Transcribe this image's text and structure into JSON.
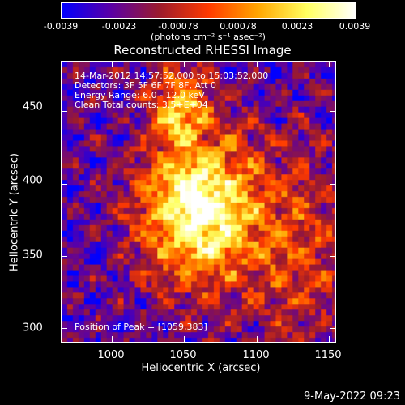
{
  "colorbar": {
    "tick_labels": [
      "-0.0039",
      "-0.0023",
      "-0.00078",
      "0.00078",
      "0.0023",
      "0.0039"
    ],
    "tick_values": [
      -0.0039,
      -0.0023,
      -0.00078,
      0.00078,
      0.0023,
      0.0039
    ],
    "units": "(photons cm⁻² s⁻¹ asec⁻²)"
  },
  "chart_data": {
    "type": "heatmap",
    "title": "Reconstructed RHESSI Image",
    "xlabel": "Heliocentric X (arcsec)",
    "ylabel": "Heliocentric Y (arcsec)",
    "xlim": [
      965,
      1155
    ],
    "ylim": [
      290,
      485
    ],
    "xticks": [
      1000,
      1050,
      1100,
      1150
    ],
    "yticks": [
      300,
      350,
      400,
      450
    ],
    "zlim": [
      -0.0039,
      0.0039
    ],
    "peak": [
      1059,
      383
    ],
    "colormap": [
      "#0000ff",
      "#5a00a6",
      "#9c1b2c",
      "#ff3a00",
      "#ffa500",
      "#ffff60",
      "#ffffff"
    ]
  },
  "annotations": {
    "time": "14-Mar-2012 14:57:52.000 to 15:03:52.000",
    "detectors": "Detectors: 3F 5F 6F 7F 8F, Att 0",
    "energy": "Energy Range: 6.0 - 12.0 keV",
    "clean": "Clean     Total counts: 3.5+E+04",
    "peak_text": "Position of Peak = [1059,383]"
  },
  "footer": {
    "date": "9-May-2022 09:23"
  }
}
